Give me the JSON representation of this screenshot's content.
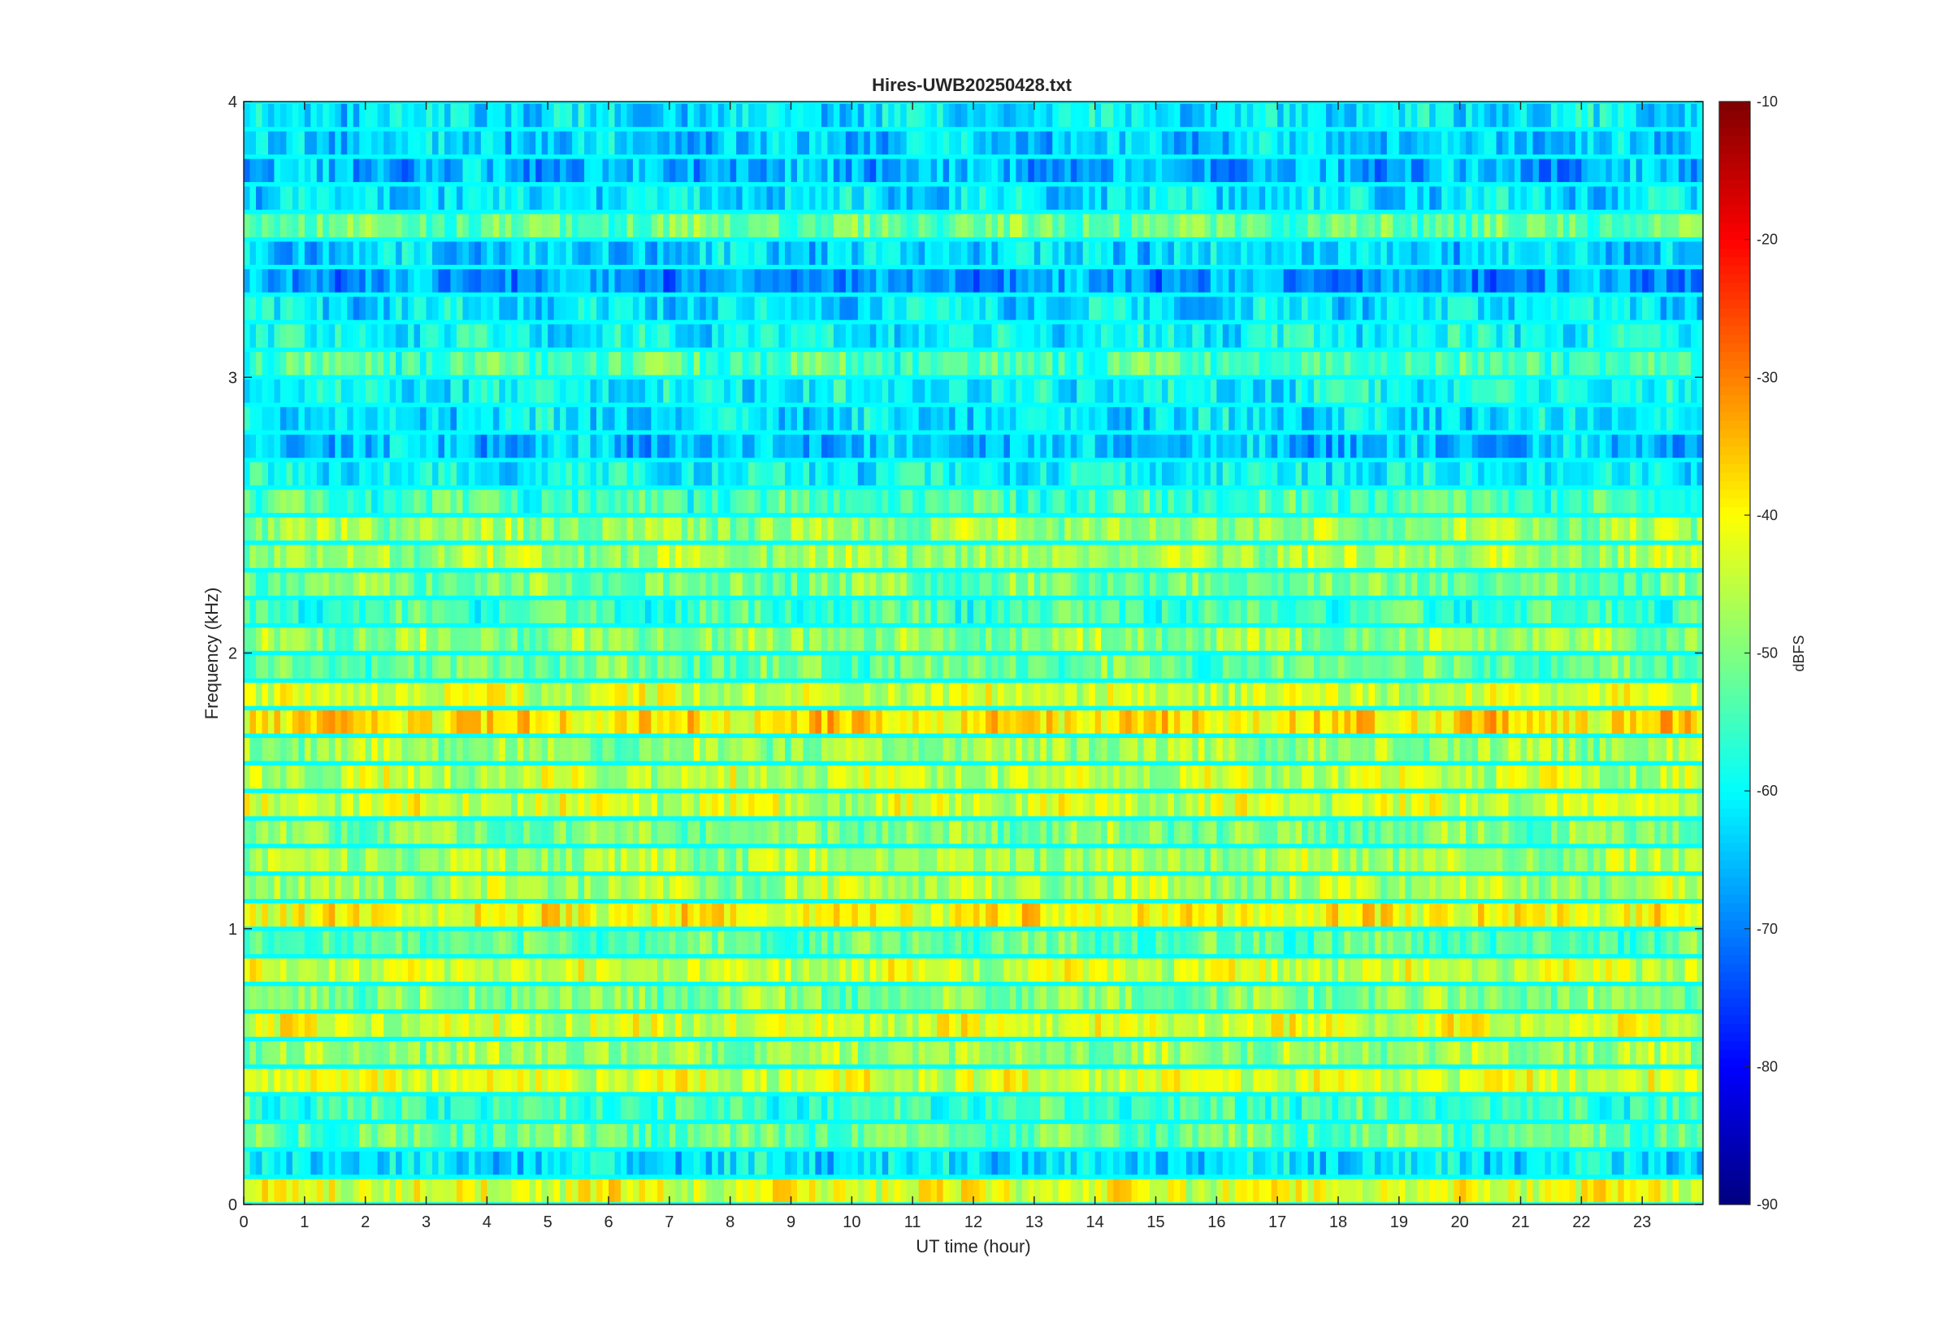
{
  "chart_data": {
    "type": "heatmap",
    "title": "Hires-UWB20250428.txt",
    "xlabel": "UT time (hour)",
    "ylabel": "Frequency (kHz)",
    "colorbar_label": "dBFS",
    "xlim": [
      0,
      24
    ],
    "ylim": [
      0,
      4
    ],
    "clim": [
      -90,
      -10
    ],
    "colormap": "jet",
    "x_ticks": [
      "0",
      "1",
      "2",
      "3",
      "4",
      "5",
      "6",
      "7",
      "8",
      "9",
      "10",
      "11",
      "12",
      "13",
      "14",
      "15",
      "16",
      "17",
      "18",
      "19",
      "20",
      "21",
      "22",
      "23"
    ],
    "y_ticks": [
      "0",
      "1",
      "2",
      "3",
      "4"
    ],
    "colorbar_ticks": [
      "-90",
      "-80",
      "-70",
      "-60",
      "-50",
      "-40",
      "-30",
      "-20",
      "-10"
    ],
    "frequency_bands_khz": [
      0.05,
      0.15,
      0.25,
      0.35,
      0.45,
      0.55,
      0.65,
      0.75,
      0.85,
      0.95,
      1.05,
      1.15,
      1.25,
      1.35,
      1.45,
      1.55,
      1.65,
      1.75,
      1.85,
      1.95,
      2.05,
      2.15,
      2.25,
      2.35,
      2.45,
      2.55,
      2.65,
      2.75,
      2.85,
      2.95,
      3.05,
      3.15,
      3.25,
      3.35,
      3.45,
      3.55,
      3.65,
      3.75,
      3.85,
      3.95
    ],
    "band_level_dbfs": [
      -42,
      -62,
      -52,
      -55,
      -43,
      -48,
      -43,
      -50,
      -44,
      -53,
      -40,
      -47,
      -47,
      -50,
      -44,
      -45,
      -48,
      -38,
      -44,
      -52,
      -49,
      -55,
      -51,
      -47,
      -48,
      -55,
      -60,
      -65,
      -62,
      -60,
      -54,
      -60,
      -62,
      -68,
      -63,
      -52,
      -62,
      -66,
      -64,
      -62
    ]
  }
}
